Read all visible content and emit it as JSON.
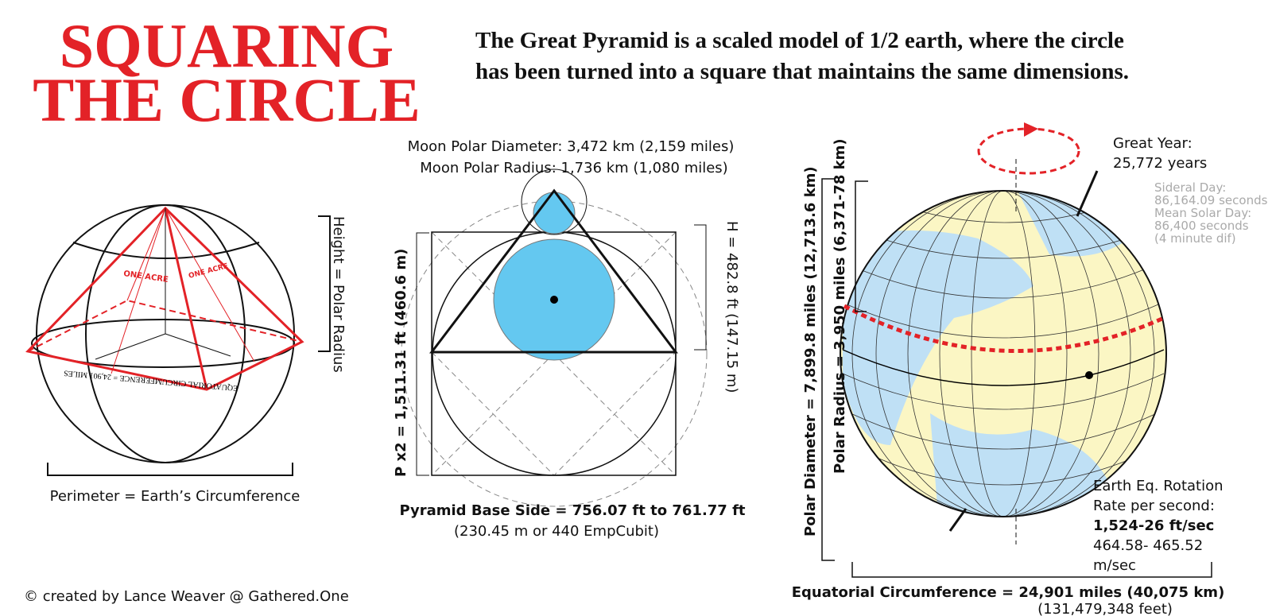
{
  "title": {
    "line1": "SQUARING",
    "line2": "THE CIRCLE"
  },
  "subtitle": [
    "The Great Pyramid is a scaled model of  1/2 earth, where the circle",
    "has been turned into a square that maintains the same dimensions."
  ],
  "left": {
    "height_label": "Height = Polar Radius",
    "acre_labels": [
      "ONE ACRE",
      "ONE ACRE"
    ],
    "equator_label": "EQUATORIAL CIRCUMFERENCE = 24,901 MILES",
    "perimeter_label": "Perimeter = Earth’s Circumference"
  },
  "center": {
    "moon_diameter": "Moon Polar Diameter: 3,472 km (2,159 miles)",
    "moon_radius": "Moon Polar Radius: 1,736 km (1,080 miles)",
    "height": "H = 482.8 ft (147.15 m)",
    "perimeter": "P x2 = 1,511.31 ft (460.6 m)",
    "base_side": "Pyramid Base Side = 756.07 ft to 761.77 ft",
    "base_side_alt": "(230.45 m or 440 EmpCubit)"
  },
  "right": {
    "great_year": [
      "Great Year:",
      "25,772 years"
    ],
    "day_notes": [
      "Sideral Day:",
      "86,164.09 seconds",
      "Mean Solar Day:",
      "86,400 seconds",
      "(4 minute dif)"
    ],
    "polar_diameter": "Polar Diameter = 7,899.8 miles (12,713.6 km)",
    "polar_radius": "Polar Radius = 3,950 miles (6,371-78 km)",
    "rotation": [
      "Earth Eq. Rotation",
      "Rate per second:",
      "1,524-26 ft/sec",
      "464.58- 465.52",
      "m/sec"
    ],
    "equatorial": "Equatorial Circumference = 24,901 miles (40,075 km)",
    "equatorial_feet": "(131,479,348 feet)"
  },
  "credit": "© created by Lance Weaver   @ Gathered.One"
}
